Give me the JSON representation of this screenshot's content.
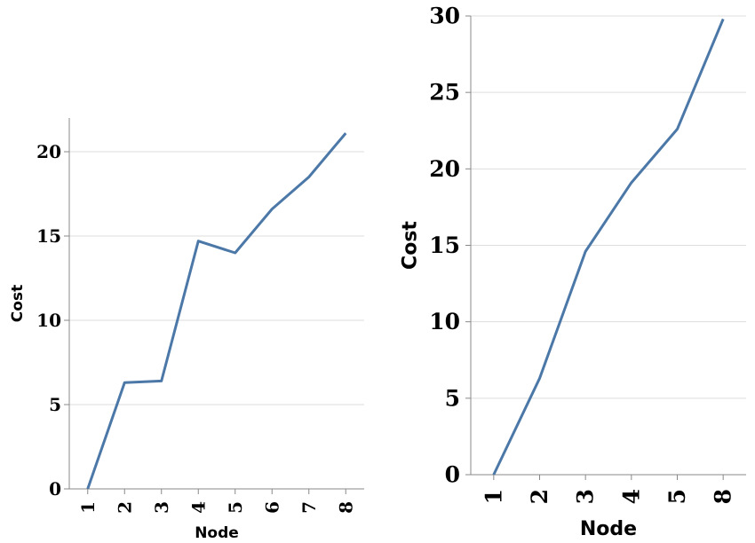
{
  "chart_data": [
    {
      "type": "line",
      "xlabel": "Node",
      "ylabel": "Cost",
      "categories": [
        "1",
        "2",
        "3",
        "4",
        "5",
        "6",
        "7",
        "8"
      ],
      "series": [
        {
          "values": [
            0,
            6.3,
            6.4,
            14.7,
            14.0,
            16.6,
            18.5,
            21.1
          ]
        }
      ],
      "ylim": [
        0,
        22
      ],
      "yticks": [
        0,
        5,
        10,
        15,
        20
      ],
      "grid": true,
      "color": "#4c78a8"
    },
    {
      "type": "line",
      "xlabel": "Node",
      "ylabel": "Cost",
      "categories": [
        "1",
        "2",
        "3",
        "4",
        "5",
        "8"
      ],
      "series": [
        {
          "values": [
            0,
            6.3,
            14.6,
            19.1,
            22.6,
            29.8
          ]
        }
      ],
      "ylim": [
        0,
        30
      ],
      "yticks": [
        0,
        5,
        10,
        15,
        20,
        25,
        30
      ],
      "grid": true,
      "color": "#4c78a8"
    }
  ]
}
